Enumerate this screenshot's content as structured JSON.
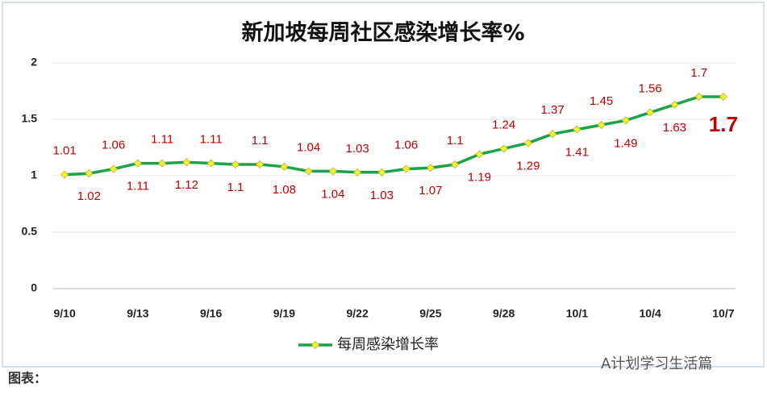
{
  "chart_data": {
    "type": "line",
    "title": "新加坡每周社区感染增长率%",
    "categories": [
      "9/10",
      null,
      null,
      "9/13",
      null,
      null,
      "9/16",
      null,
      null,
      "9/19",
      null,
      null,
      "9/22",
      null,
      null,
      "9/25",
      null,
      null,
      "9/28",
      null,
      null,
      "10/1",
      null,
      null,
      "10/4",
      null,
      null,
      "10/7"
    ],
    "series": [
      {
        "name": "每周感染增长率",
        "color": "#1aa34a",
        "marker_color": "#f2f230",
        "values": [
          1.01,
          1.02,
          1.06,
          1.11,
          1.11,
          1.12,
          1.11,
          1.1,
          1.1,
          1.08,
          1.04,
          1.04,
          1.03,
          1.03,
          1.06,
          1.07,
          1.1,
          1.19,
          1.24,
          1.29,
          1.37,
          1.41,
          1.45,
          1.49,
          1.56,
          1.63,
          1.7,
          1.7
        ]
      }
    ],
    "ylim": [
      0,
      2
    ],
    "yticks": [
      0,
      0.5,
      1,
      1.5,
      2
    ],
    "grid": true,
    "legend": "bottom",
    "source": "图表：",
    "watermark": "A计划学习生活篇"
  }
}
